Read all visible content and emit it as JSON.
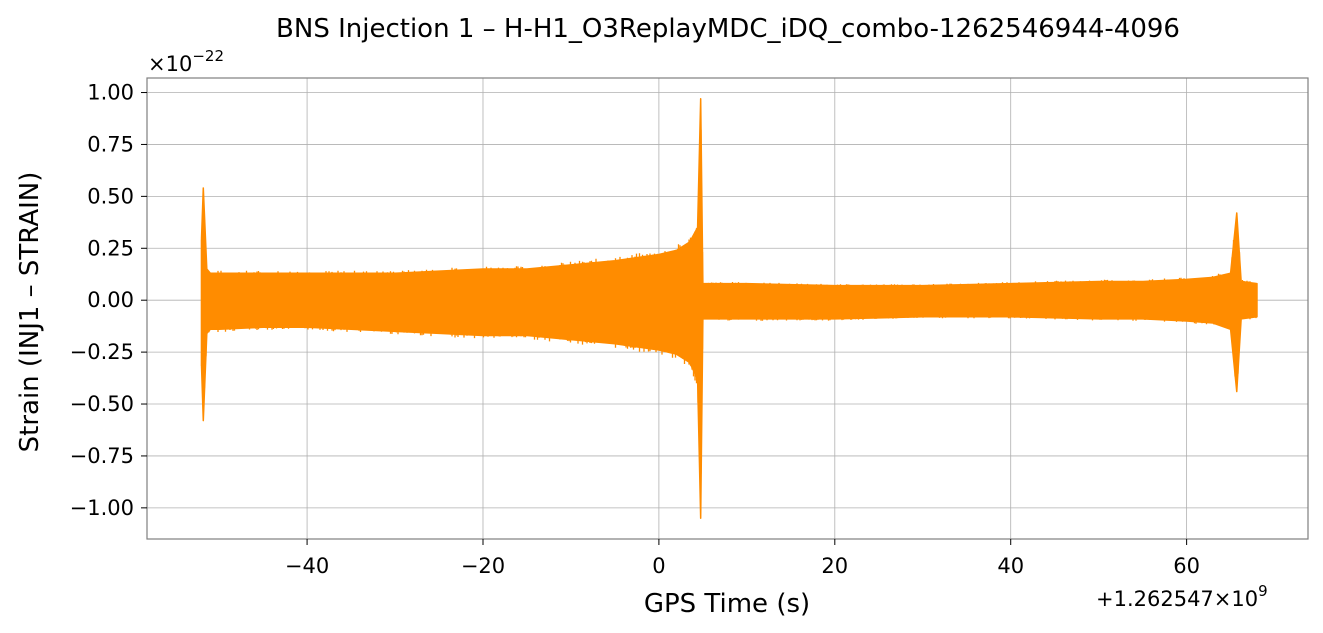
{
  "chart_data": {
    "type": "line",
    "title": "BNS Injection 1 – H-H1_O3ReplayMDC_iDQ_combo-1262546944-4096",
    "xlabel": "GPS Time (s)",
    "ylabel": "Strain (INJ1 – STRAIN)",
    "x_offset_label": "+1.262547×10",
    "x_offset_exp": "9",
    "y_scale_label": "×10",
    "y_scale_exp": "−22",
    "xlim": [
      -58.2,
      73.8
    ],
    "ylim": [
      -1.15,
      1.07
    ],
    "x_ticks": [
      -40,
      -20,
      0,
      20,
      40,
      60
    ],
    "x_tick_labels": [
      "−40",
      "−20",
      "0",
      "20",
      "40",
      "60"
    ],
    "y_ticks": [
      1.0,
      0.75,
      0.5,
      0.25,
      0.0,
      -0.25,
      -0.5,
      -0.75,
      -1.0
    ],
    "y_tick_labels": [
      "1.00",
      "0.75",
      "0.50",
      "0.25",
      "0.00",
      "−0.25",
      "−0.50",
      "−0.75",
      "−1.00"
    ],
    "grid": true,
    "series": [
      {
        "color": "#ff8c00",
        "x": [
          -52.0,
          -51.8,
          -51.4,
          -51.0,
          -50.0,
          -45.0,
          -40.0,
          -35.0,
          -30.0,
          -25.0,
          -20.0,
          -15.0,
          -10.0,
          -5.0,
          0.0,
          2.0,
          3.5,
          4.4,
          4.75,
          5.0,
          10.0,
          20.0,
          30.0,
          40.0,
          50.0,
          55.0,
          60.0,
          63.0,
          65.0,
          65.7,
          66.2,
          68.0
        ],
        "upper": [
          0.3,
          0.54,
          0.15,
          0.13,
          0.13,
          0.13,
          0.13,
          0.13,
          0.13,
          0.14,
          0.15,
          0.15,
          0.17,
          0.19,
          0.22,
          0.24,
          0.28,
          0.35,
          0.97,
          0.08,
          0.08,
          0.07,
          0.07,
          0.08,
          0.09,
          0.09,
          0.1,
          0.11,
          0.13,
          0.42,
          0.09,
          0.08
        ],
        "lower": [
          -0.32,
          -0.58,
          -0.16,
          -0.14,
          -0.14,
          -0.13,
          -0.13,
          -0.14,
          -0.15,
          -0.16,
          -0.17,
          -0.17,
          -0.19,
          -0.21,
          -0.24,
          -0.26,
          -0.3,
          -0.38,
          -1.05,
          -0.09,
          -0.09,
          -0.09,
          -0.08,
          -0.08,
          -0.09,
          -0.09,
          -0.1,
          -0.11,
          -0.14,
          -0.44,
          -0.09,
          -0.08
        ]
      }
    ]
  }
}
